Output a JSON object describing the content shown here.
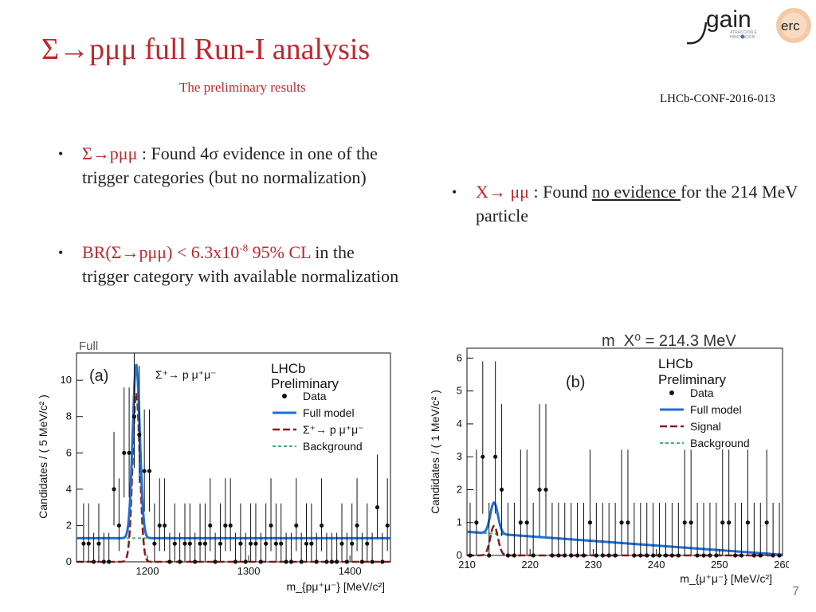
{
  "slide": {
    "title": "Σ→pμμ full Run-I analysis",
    "subtitle": "The preliminary results",
    "reference": "LHCb-CONF-2016-013",
    "page_number": "7",
    "logo": {
      "main": "gain",
      "badge": "erc"
    }
  },
  "bullets": {
    "b1": {
      "decay": "Σ→pμμ",
      "text": " : Found 4σ evidence in one of the trigger categories (but no normalization)"
    },
    "b2": {
      "br_prefix": "BR(Σ→pμμ) < 6.3x10",
      "br_exp": "-8",
      "cl": " 95% CL",
      "rest": " in the trigger category with available normalization"
    },
    "b3": {
      "decay": "X→ μμ",
      "pre": " : Found ",
      "underlined": "no evidence ",
      "post": "for the 214 MeV particle"
    }
  },
  "colors": {
    "accent": "#c0272d",
    "full_model": "#1f6fd6",
    "signal": "#8b1a1a",
    "background": "#3cb371"
  },
  "chart_data": [
    {
      "type": "scatter",
      "panel": "(a)",
      "corner_label": "Full",
      "process_label": "Σ⁺→ p μ⁺μ⁻",
      "experiment": [
        "LHCb",
        "Preliminary"
      ],
      "xlabel": "m_{pμ⁺μ⁻} [MeV/c²]",
      "ylabel": "Candidates / ( 5 MeV/c² )",
      "xlim": [
        1130,
        1440
      ],
      "ylim": [
        0,
        11.5
      ],
      "xticks": [
        1200,
        1300,
        1400
      ],
      "yticks": [
        0,
        2,
        4,
        6,
        8,
        10
      ],
      "legend": [
        "Data",
        "Full model",
        "Σ⁺→ p μ⁺μ⁻",
        "Background"
      ],
      "legend_position": "top-right",
      "data_x": [
        1137,
        1142,
        1147,
        1152,
        1157,
        1162,
        1167,
        1172,
        1177,
        1182,
        1187,
        1192,
        1197,
        1202,
        1207,
        1212,
        1217,
        1222,
        1227,
        1232,
        1237,
        1242,
        1247,
        1252,
        1257,
        1262,
        1267,
        1272,
        1277,
        1282,
        1287,
        1292,
        1297,
        1302,
        1307,
        1312,
        1317,
        1322,
        1327,
        1332,
        1337,
        1342,
        1347,
        1352,
        1357,
        1362,
        1367,
        1372,
        1377,
        1382,
        1387,
        1392,
        1397,
        1402,
        1407,
        1412,
        1417,
        1422,
        1427,
        1432,
        1437
      ],
      "data_y": [
        1,
        1,
        0,
        1,
        0,
        0,
        4,
        2,
        6,
        6,
        8,
        7,
        5,
        5,
        1,
        2,
        2,
        0,
        1,
        0,
        1,
        1,
        0,
        1,
        1,
        2,
        0,
        1,
        2,
        2,
        0,
        1,
        0,
        1,
        1,
        0,
        1,
        2,
        1,
        1,
        0,
        0,
        2,
        0,
        1,
        1,
        0,
        2,
        0,
        0,
        0,
        1,
        0,
        1,
        2,
        0,
        1,
        0,
        3,
        0,
        2
      ],
      "full_model": {
        "peak_mean": 1189,
        "peak_sigma": 3.5,
        "peak_height": 9.6,
        "background_level": 1.3
      },
      "signal": {
        "mean": 1189,
        "sigma": 3.5,
        "height": 9.3
      },
      "background_level": 1.3
    },
    {
      "type": "scatter",
      "panel": "(b)",
      "header": "m_X⁰ = 214.3 MeV",
      "experiment": [
        "LHCb",
        "Preliminary"
      ],
      "xlabel": "m_{μ⁺μ⁻} [MeV/c²]",
      "ylabel": "Candidates / ( 1 MeV/c² )",
      "xlim": [
        210,
        260
      ],
      "ylim": [
        0,
        6.3
      ],
      "xticks": [
        210,
        220,
        230,
        240,
        250,
        260
      ],
      "yticks": [
        0,
        1,
        2,
        3,
        4,
        5,
        6
      ],
      "legend": [
        "Data",
        "Full model",
        "Signal",
        "Background"
      ],
      "legend_position": "top-right",
      "data_x": [
        210.5,
        211.5,
        212.5,
        213.5,
        214.5,
        215.5,
        216.5,
        217.5,
        218.5,
        219.5,
        220.5,
        221.5,
        222.5,
        223.5,
        224.5,
        225.5,
        226.5,
        227.5,
        228.5,
        229.5,
        230.5,
        231.5,
        232.5,
        233.5,
        234.5,
        235.5,
        236.5,
        237.5,
        238.5,
        239.5,
        240.5,
        241.5,
        242.5,
        243.5,
        244.5,
        245.5,
        246.5,
        247.5,
        248.5,
        249.5,
        250.5,
        251.5,
        252.5,
        253.5,
        254.5,
        255.5,
        256.5,
        257.5,
        258.5,
        259.5
      ],
      "data_y": [
        0,
        1,
        3,
        0,
        3,
        2,
        0,
        0,
        1,
        1,
        0,
        2,
        2,
        0,
        0,
        0,
        0,
        0,
        0,
        1,
        0,
        0,
        0,
        0,
        1,
        1,
        0,
        0,
        0,
        0,
        0,
        0,
        0,
        0,
        1,
        1,
        0,
        0,
        0,
        0,
        1,
        1,
        0,
        0,
        1,
        0,
        0,
        1,
        0,
        0
      ],
      "full_model": {
        "peak_mean": 214.3,
        "peak_sigma": 0.6,
        "peak_height": 0.95,
        "background_start": 0.72,
        "background_end": 0.02
      },
      "signal": {
        "mean": 214.3,
        "sigma": 0.6,
        "height": 0.9
      },
      "background": {
        "start": 0.72,
        "end": 0.02
      }
    }
  ]
}
